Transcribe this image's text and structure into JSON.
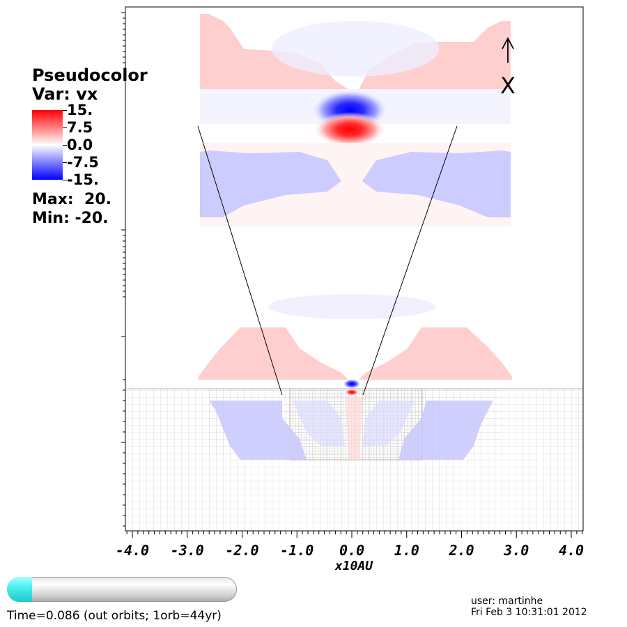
{
  "chart_data": {
    "type": "heatmap",
    "title": "",
    "legend": {
      "title": "Pseudocolor",
      "var": "Var: vx",
      "ticks": [
        "15.",
        "7.5",
        "0.0",
        "-7.5",
        "-15."
      ],
      "max": "Max:  20.",
      "min": "Min: -20.",
      "colors": {
        "high": "#ff0000",
        "mid": "#ffffff",
        "low": "#0000ff"
      }
    },
    "xlabel": "x10AU",
    "xticks": [
      "-4.0",
      "-3.0",
      "-2.0",
      "-1.0",
      "0.0",
      "1.0",
      "2.0",
      "3.0",
      "4.0"
    ],
    "xlim": [
      -4.3,
      4.3
    ],
    "axis_letter": "X",
    "value_range": [
      -20,
      20
    ]
  },
  "controls": {
    "time_label": "Time=0.086 (out orbits; 1orb=44yr)",
    "time_progress": 0.11
  },
  "info": {
    "user": "user: martinhe",
    "date": "Fri Feb  3 10:31:01 2012"
  }
}
